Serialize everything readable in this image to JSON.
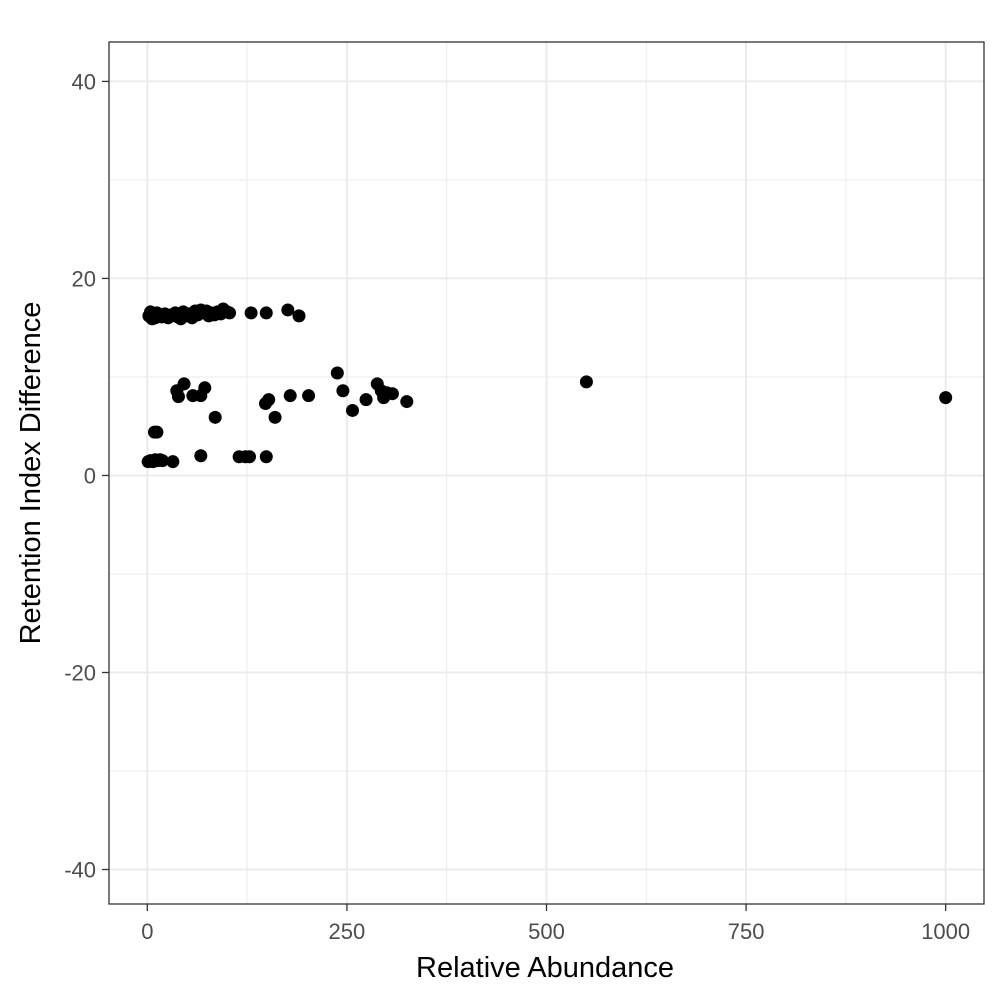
{
  "chart_data": {
    "type": "scatter",
    "title": "",
    "xlabel": "Relative Abundance",
    "ylabel": "Retention Index Difference",
    "xlim": [
      -48,
      1048
    ],
    "ylim": [
      -43.5,
      44
    ],
    "x_ticks": [
      0,
      250,
      500,
      750,
      1000
    ],
    "x_tick_labels": [
      "0",
      "250",
      "500",
      "750",
      "1000"
    ],
    "y_ticks": [
      -40,
      -20,
      0,
      20,
      40
    ],
    "y_tick_labels": [
      "-40",
      "-20",
      "0",
      "20",
      "40"
    ],
    "grid": true,
    "legend": "none",
    "point_color": "#000000",
    "grid_color": "#ebebeb",
    "points": [
      {
        "x": 2,
        "y": 16.2
      },
      {
        "x": 4,
        "y": 16.6
      },
      {
        "x": 6,
        "y": 15.9
      },
      {
        "x": 8,
        "y": 16.4
      },
      {
        "x": 10,
        "y": 16.0
      },
      {
        "x": 12,
        "y": 16.5
      },
      {
        "x": 15,
        "y": 16.3
      },
      {
        "x": 18,
        "y": 16.1
      },
      {
        "x": 22,
        "y": 16.4
      },
      {
        "x": 26,
        "y": 16.0
      },
      {
        "x": 30,
        "y": 16.3
      },
      {
        "x": 35,
        "y": 16.5
      },
      {
        "x": 38,
        "y": 16.1
      },
      {
        "x": 42,
        "y": 15.9
      },
      {
        "x": 45,
        "y": 16.6
      },
      {
        "x": 48,
        "y": 16.2
      },
      {
        "x": 52,
        "y": 16.4
      },
      {
        "x": 56,
        "y": 16.0
      },
      {
        "x": 60,
        "y": 16.7
      },
      {
        "x": 63,
        "y": 16.3
      },
      {
        "x": 67,
        "y": 16.8
      },
      {
        "x": 70,
        "y": 16.5
      },
      {
        "x": 74,
        "y": 16.7
      },
      {
        "x": 77,
        "y": 16.2
      },
      {
        "x": 80,
        "y": 16.5
      },
      {
        "x": 84,
        "y": 16.3
      },
      {
        "x": 88,
        "y": 16.6
      },
      {
        "x": 92,
        "y": 16.4
      },
      {
        "x": 95,
        "y": 16.9
      },
      {
        "x": 100,
        "y": 16.6
      },
      {
        "x": 103,
        "y": 16.5
      },
      {
        "x": 130,
        "y": 16.5
      },
      {
        "x": 149,
        "y": 16.5
      },
      {
        "x": 176,
        "y": 16.8
      },
      {
        "x": 190,
        "y": 16.2
      },
      {
        "x": 238,
        "y": 10.4
      },
      {
        "x": 245,
        "y": 8.6
      },
      {
        "x": 257,
        "y": 6.6
      },
      {
        "x": 274,
        "y": 7.7
      },
      {
        "x": 288,
        "y": 9.3
      },
      {
        "x": 293,
        "y": 8.6
      },
      {
        "x": 296,
        "y": 7.9
      },
      {
        "x": 300,
        "y": 8.4
      },
      {
        "x": 307,
        "y": 8.3
      },
      {
        "x": 325,
        "y": 7.5
      },
      {
        "x": 550,
        "y": 9.5
      },
      {
        "x": 1000,
        "y": 7.9
      },
      {
        "x": 37,
        "y": 8.6
      },
      {
        "x": 39,
        "y": 8.0
      },
      {
        "x": 46,
        "y": 9.3
      },
      {
        "x": 57,
        "y": 8.1
      },
      {
        "x": 67,
        "y": 8.1
      },
      {
        "x": 72,
        "y": 8.9
      },
      {
        "x": 85,
        "y": 5.9
      },
      {
        "x": 148,
        "y": 7.3
      },
      {
        "x": 152,
        "y": 7.7
      },
      {
        "x": 160,
        "y": 5.9
      },
      {
        "x": 179,
        "y": 8.1
      },
      {
        "x": 202,
        "y": 8.1
      },
      {
        "x": 9,
        "y": 4.4
      },
      {
        "x": 12,
        "y": 4.4
      },
      {
        "x": 1,
        "y": 1.4
      },
      {
        "x": 4,
        "y": 1.5
      },
      {
        "x": 7,
        "y": 1.4
      },
      {
        "x": 10,
        "y": 1.6
      },
      {
        "x": 13,
        "y": 1.5
      },
      {
        "x": 16,
        "y": 1.6
      },
      {
        "x": 19,
        "y": 1.5
      },
      {
        "x": 32,
        "y": 1.4
      },
      {
        "x": 67,
        "y": 2.0
      },
      {
        "x": 115,
        "y": 1.9
      },
      {
        "x": 123,
        "y": 1.9
      },
      {
        "x": 128,
        "y": 1.9
      },
      {
        "x": 149,
        "y": 1.9
      }
    ]
  }
}
